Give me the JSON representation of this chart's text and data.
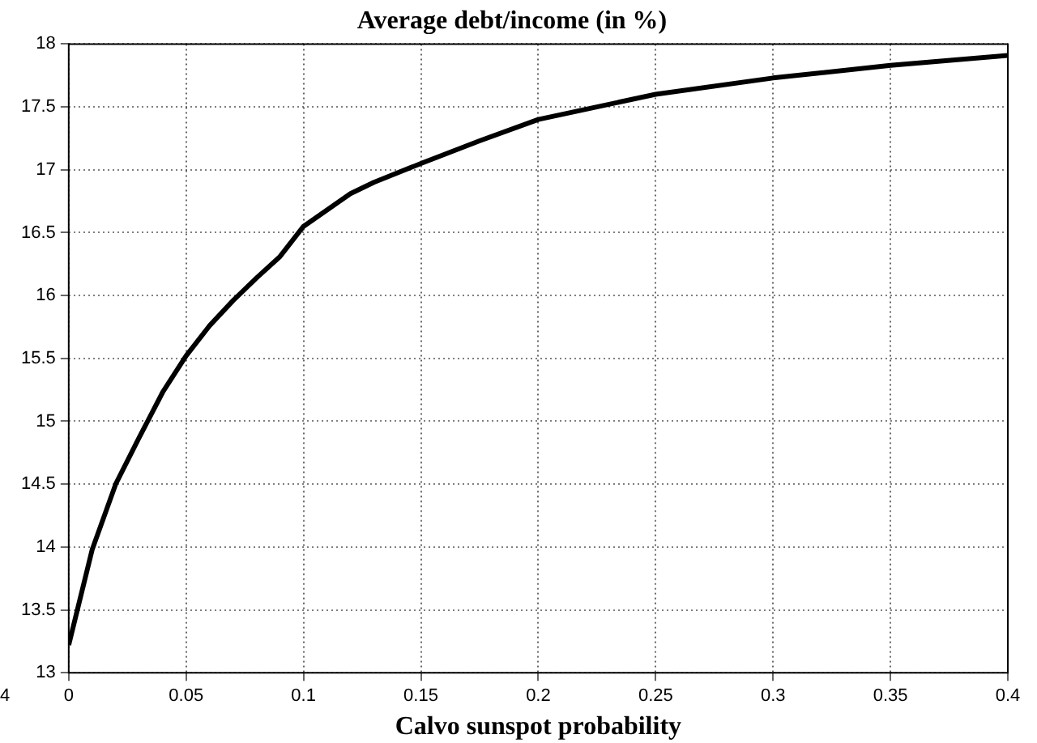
{
  "chart_data": {
    "type": "line",
    "title": "Average debt/income (in %)",
    "xlabel": "Calvo sunspot probability",
    "x": [
      0,
      0.01,
      0.02,
      0.03,
      0.04,
      0.05,
      0.06,
      0.07,
      0.08,
      0.09,
      0.1,
      0.11,
      0.12,
      0.13,
      0.15,
      0.175,
      0.2,
      0.25,
      0.3,
      0.35,
      0.4
    ],
    "series": [
      {
        "color": "#000000",
        "values": [
          13.22,
          13.98,
          14.5,
          14.87,
          15.23,
          15.52,
          15.76,
          15.96,
          16.14,
          16.31,
          16.55,
          16.68,
          16.81,
          16.9,
          17.05,
          17.23,
          17.4,
          17.6,
          17.73,
          17.83,
          17.91
        ]
      }
    ],
    "xlim": [
      0,
      0.4
    ],
    "xticks": [
      0,
      0.05,
      0.1,
      0.15,
      0.2,
      0.25,
      0.3,
      0.35,
      0.4
    ],
    "ylim": [
      13,
      18
    ],
    "yticks": [
      13,
      13.5,
      14,
      14.5,
      15,
      15.5,
      16,
      16.5,
      17,
      17.5,
      18
    ],
    "grid": true,
    "legend": false,
    "marker": "none",
    "line_style": "solid",
    "annotations": [
      "4"
    ]
  }
}
